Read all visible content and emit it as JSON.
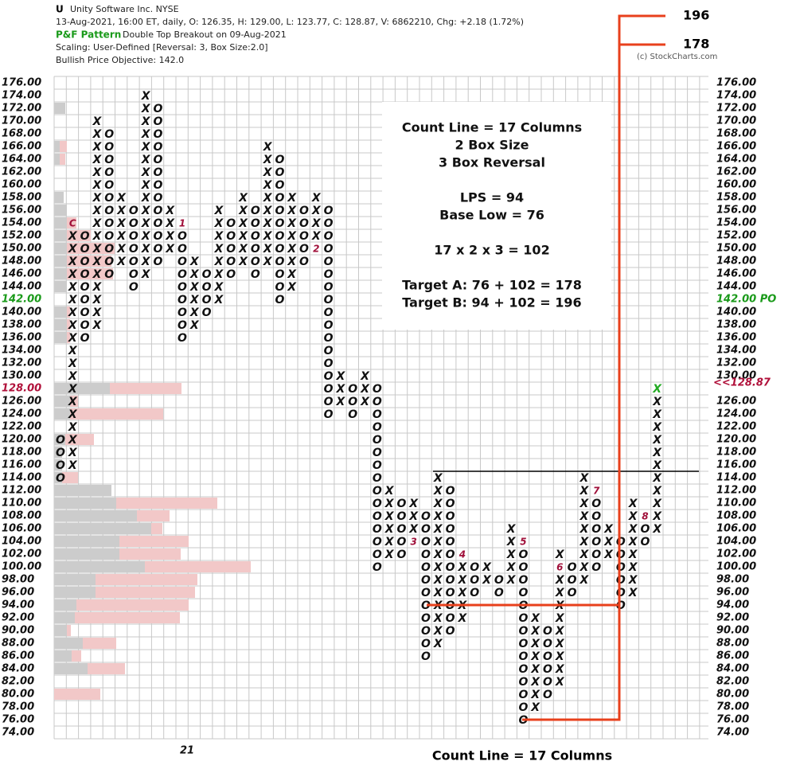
{
  "chart_data": {
    "type": "pnf",
    "symbol": "U",
    "name": "Unity Software Inc.  NYSE",
    "quote": "13-Aug-2021, 16:00 ET, daily, O: 126.35, H: 129.00, L: 123.77, C: 128.87, V: 6862210, Chg: +2.18 (1.72%)",
    "pattern_label": "P&F Pattern",
    "pattern": "Double Top Breakout on 09-Aug-2021",
    "scaling": "Scaling: User-Defined [Reversal: 3, Box Size:2.0]",
    "objective_text": "Bullish Price Objective: 142.0",
    "copyright": "(c) StockCharts.com",
    "year_marker": "21",
    "footer": "Count Line = 17 Columns",
    "box_size": 2,
    "ylim": [
      74,
      176
    ],
    "yticks": [
      {
        "value": 176,
        "label": "176.00"
      },
      {
        "value": 174,
        "label": "174.00"
      },
      {
        "value": 172,
        "label": "172.00"
      },
      {
        "value": 170,
        "label": "170.00"
      },
      {
        "value": 168,
        "label": "168.00"
      },
      {
        "value": 166,
        "label": "166.00"
      },
      {
        "value": 164,
        "label": "164.00"
      },
      {
        "value": 162,
        "label": "162.00"
      },
      {
        "value": 160,
        "label": "160.00"
      },
      {
        "value": 158,
        "label": "158.00"
      },
      {
        "value": 156,
        "label": "156.00"
      },
      {
        "value": 154,
        "label": "154.00"
      },
      {
        "value": 152,
        "label": "152.00"
      },
      {
        "value": 150,
        "label": "150.00"
      },
      {
        "value": 148,
        "label": "148.00"
      },
      {
        "value": 146,
        "label": "146.00"
      },
      {
        "value": 144,
        "label": "144.00"
      },
      {
        "value": 142,
        "label": "142.00",
        "color": "#1a9a1a"
      },
      {
        "value": 140,
        "label": "140.00"
      },
      {
        "value": 138,
        "label": "138.00"
      },
      {
        "value": 136,
        "label": "136.00"
      },
      {
        "value": 134,
        "label": "134.00"
      },
      {
        "value": 132,
        "label": "132.00"
      },
      {
        "value": 130,
        "label": "130.00"
      },
      {
        "value": 128,
        "label": "128.00",
        "color": "#b0103a"
      },
      {
        "value": 126,
        "label": "126.00"
      },
      {
        "value": 124,
        "label": "124.00"
      },
      {
        "value": 122,
        "label": "122.00"
      },
      {
        "value": 120,
        "label": "120.00"
      },
      {
        "value": 118,
        "label": "118.00"
      },
      {
        "value": 116,
        "label": "116.00"
      },
      {
        "value": 114,
        "label": "114.00"
      },
      {
        "value": 112,
        "label": "112.00"
      },
      {
        "value": 110,
        "label": "110.00"
      },
      {
        "value": 108,
        "label": "108.00"
      },
      {
        "value": 106,
        "label": "106.00"
      },
      {
        "value": 104,
        "label": "104.00"
      },
      {
        "value": 102,
        "label": "102.00"
      },
      {
        "value": 100,
        "label": "100.00"
      },
      {
        "value": 98,
        "label": "98.00"
      },
      {
        "value": 96,
        "label": "96.00"
      },
      {
        "value": 94,
        "label": "94.00"
      },
      {
        "value": 92,
        "label": "92.00"
      },
      {
        "value": 90,
        "label": "90.00"
      },
      {
        "value": 88,
        "label": "88.00"
      },
      {
        "value": 86,
        "label": "86.00"
      },
      {
        "value": 84,
        "label": "84.00"
      },
      {
        "value": 82,
        "label": "82.00"
      },
      {
        "value": 80,
        "label": "80.00"
      },
      {
        "value": 78,
        "label": "78.00"
      },
      {
        "value": 76,
        "label": "76.00"
      },
      {
        "value": 74,
        "label": "74.00"
      }
    ],
    "price_objective": {
      "value": 142,
      "label": "142.00 PO",
      "color": "#1a9a1a"
    },
    "last_price": {
      "value": 128.87,
      "label": "<<128.87",
      "color": "#b0103a"
    },
    "month_color": "#a0103a",
    "current_box_color": "#22aa22",
    "columns": [
      {
        "box": "O",
        "low": 114,
        "high": 120
      },
      {
        "box": "X",
        "low": 116,
        "high": 154,
        "month": {
          "price": 154,
          "label": "C"
        }
      },
      {
        "box": "O",
        "low": 136,
        "high": 152
      },
      {
        "box": "X",
        "low": 138,
        "high": 170
      },
      {
        "box": "O",
        "low": 146,
        "high": 168
      },
      {
        "box": "X",
        "low": 148,
        "high": 158
      },
      {
        "box": "O",
        "low": 144,
        "high": 156
      },
      {
        "box": "X",
        "low": 146,
        "high": 174
      },
      {
        "box": "O",
        "low": 148,
        "high": 172
      },
      {
        "box": "X",
        "low": 150,
        "high": 156
      },
      {
        "box": "O",
        "low": 136,
        "high": 154,
        "month": {
          "price": 154,
          "label": "1"
        }
      },
      {
        "box": "X",
        "low": 138,
        "high": 148
      },
      {
        "box": "O",
        "low": 140,
        "high": 146
      },
      {
        "box": "X",
        "low": 142,
        "high": 156
      },
      {
        "box": "O",
        "low": 146,
        "high": 154
      },
      {
        "box": "X",
        "low": 148,
        "high": 158
      },
      {
        "box": "O",
        "low": 146,
        "high": 156
      },
      {
        "box": "X",
        "low": 148,
        "high": 166
      },
      {
        "box": "O",
        "low": 142,
        "high": 164
      },
      {
        "box": "X",
        "low": 144,
        "high": 158
      },
      {
        "box": "O",
        "low": 148,
        "high": 156
      },
      {
        "box": "X",
        "low": 150,
        "high": 158,
        "month": {
          "price": 150,
          "label": "2"
        }
      },
      {
        "box": "O",
        "low": 124,
        "high": 156
      },
      {
        "box": "X",
        "low": 126,
        "high": 130
      },
      {
        "box": "O",
        "low": 124,
        "high": 128
      },
      {
        "box": "X",
        "low": 126,
        "high": 130
      },
      {
        "box": "O",
        "low": 100,
        "high": 128
      },
      {
        "box": "X",
        "low": 102,
        "high": 112
      },
      {
        "box": "O",
        "low": 102,
        "high": 110
      },
      {
        "box": "X",
        "low": 104,
        "high": 110,
        "month": {
          "price": 104,
          "label": "3"
        }
      },
      {
        "box": "O",
        "low": 86,
        "high": 108
      },
      {
        "box": "X",
        "low": 88,
        "high": 114
      },
      {
        "box": "O",
        "low": 90,
        "high": 112
      },
      {
        "box": "X",
        "low": 92,
        "high": 102,
        "month": {
          "price": 102,
          "label": "4"
        }
      },
      {
        "box": "O",
        "low": 96,
        "high": 100
      },
      {
        "box": "X",
        "low": 98,
        "high": 100
      },
      {
        "box": "O",
        "low": 96,
        "high": 98
      },
      {
        "box": "X",
        "low": 98,
        "high": 106
      },
      {
        "box": "O",
        "low": 76,
        "high": 104,
        "month": {
          "price": 104,
          "label": "5"
        }
      },
      {
        "box": "X",
        "low": 78,
        "high": 92
      },
      {
        "box": "O",
        "low": 80,
        "high": 90
      },
      {
        "box": "X",
        "low": 82,
        "high": 102,
        "month": {
          "price": 100,
          "label": "6"
        }
      },
      {
        "box": "O",
        "low": 96,
        "high": 100
      },
      {
        "box": "X",
        "low": 98,
        "high": 114
      },
      {
        "box": "O",
        "low": 100,
        "high": 112,
        "month": {
          "price": 112,
          "label": "7"
        }
      },
      {
        "box": "X",
        "low": 102,
        "high": 106
      },
      {
        "box": "O",
        "low": 94,
        "high": 104
      },
      {
        "box": "X",
        "low": 96,
        "high": 110
      },
      {
        "box": "O",
        "low": 104,
        "high": 108,
        "month": {
          "price": 108,
          "label": "8"
        }
      },
      {
        "box": "X",
        "low": 106,
        "high": 128
      }
    ],
    "volume_by_price": {
      "down_color": "#cccccc",
      "up_color": "#f2c8c8",
      "prices": [
        172,
        166,
        164,
        158,
        156,
        154,
        152,
        150,
        148,
        146,
        144,
        140,
        138,
        136,
        128,
        126,
        124,
        120,
        118,
        116,
        114,
        112,
        110,
        108,
        106,
        104,
        102,
        100,
        98,
        96,
        94,
        92,
        90,
        88,
        86,
        84,
        80
      ],
      "down": [
        14,
        7,
        7,
        12,
        16,
        16,
        16,
        16,
        16,
        16,
        16,
        16,
        16,
        16,
        70,
        20,
        20,
        14,
        10,
        10,
        10,
        72,
        78,
        104,
        122,
        82,
        82,
        114,
        52,
        52,
        28,
        26,
        16,
        36,
        22,
        42,
        0
      ],
      "up": [
        0,
        9,
        7,
        0,
        0,
        12,
        30,
        60,
        56,
        58,
        0,
        4,
        4,
        4,
        90,
        10,
        117,
        36,
        0,
        0,
        20,
        0,
        127,
        41,
        14,
        87,
        77,
        133,
        128,
        125,
        141,
        132,
        5,
        42,
        12,
        47,
        58
      ]
    },
    "targets": [
      196,
      178
    ],
    "annotation": [
      "Count Line = 17 Columns",
      "2 Box Size",
      "3 Box Reversal",
      "LPS = 94",
      "Base Low = 76",
      "17 x 2 x 3 = 102",
      "Target A: 76 + 102 = 178",
      "Target B: 94 + 102 = 196"
    ]
  }
}
